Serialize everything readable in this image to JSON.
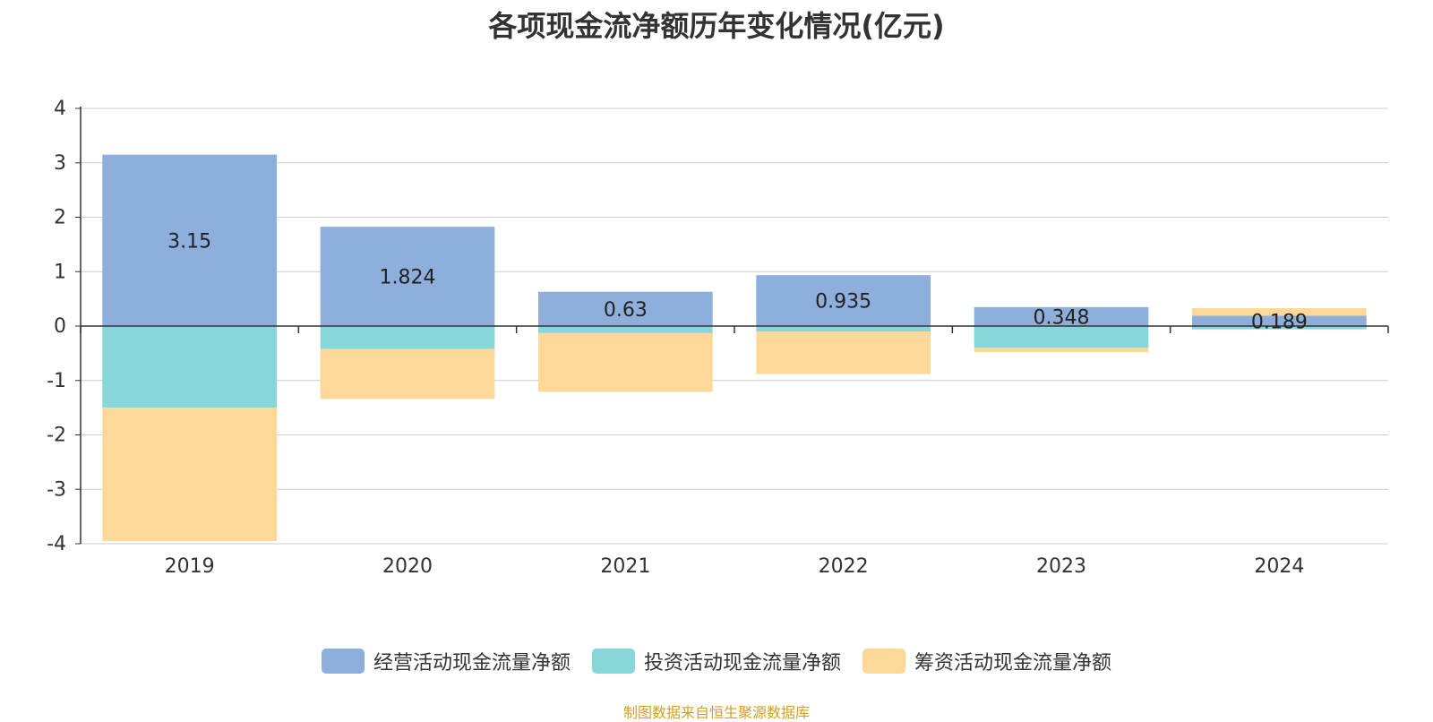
{
  "chart_data": {
    "type": "bar",
    "title": "各项现金流净额历年变化情况(亿元)",
    "categories": [
      "2019",
      "2020",
      "2021",
      "2022",
      "2023",
      "2024"
    ],
    "series": [
      {
        "name": "经营活动现金流量净额",
        "color": "#8eaedb",
        "values": [
          3.15,
          1.824,
          0.63,
          0.935,
          0.348,
          0.189
        ]
      },
      {
        "name": "投资活动现金流量净额",
        "color": "#87d6d9",
        "values": [
          -1.5,
          -0.42,
          -0.13,
          -0.1,
          -0.4,
          -0.06
        ]
      },
      {
        "name": "筹资活动现金流量净额",
        "color": "#fed897",
        "values": [
          -2.45,
          -0.92,
          -1.08,
          -0.78,
          -0.08,
          0.14
        ]
      }
    ],
    "data_labels": [
      "3.15",
      "1.824",
      "0.63",
      "0.935",
      "0.348",
      "0.189"
    ],
    "ylim": [
      -4,
      4
    ],
    "yticks": [
      "4",
      "3",
      "2",
      "1",
      "0",
      "-1",
      "-2",
      "-3",
      "-4"
    ],
    "grid": true,
    "stacked": true,
    "legend_position": "bottom"
  },
  "source": {
    "text": "制图数据来自恒生聚源数据库",
    "color": "#d4a020"
  }
}
